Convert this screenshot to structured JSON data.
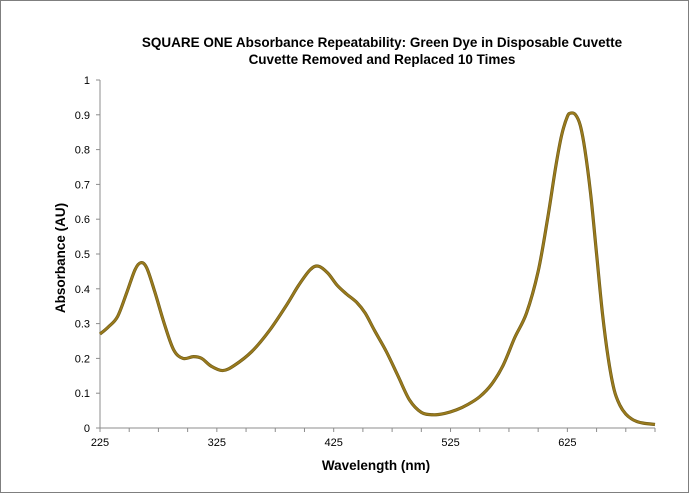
{
  "chart_data": {
    "type": "line",
    "title": "SQUARE ONE Absorbance Repeatability: Green Dye in Disposable Cuvette",
    "subtitle": "Cuvette Removed and Replaced 10 Times",
    "xlabel": "Wavelength (nm)",
    "ylabel": "Absorbance (AU)",
    "xlim": [
      225,
      700
    ],
    "ylim": [
      0,
      1
    ],
    "x_ticks": [
      225,
      325,
      425,
      525,
      625
    ],
    "y_ticks": [
      0,
      0.1,
      0.2,
      0.3,
      0.4,
      0.5,
      0.6,
      0.7,
      0.8,
      0.9,
      1
    ],
    "y_tick_labels": [
      "0",
      "0.1",
      "0.2",
      "0.3",
      "0.4",
      "0.5",
      "0.6",
      "0.7",
      "0.8",
      "0.9",
      "1"
    ],
    "grid": false,
    "legend": "none",
    "line_color": "#9a7a1c",
    "series": [
      {
        "x": [
          225,
          232,
          240,
          248,
          255,
          260,
          265,
          272,
          280,
          288,
          296,
          305,
          312,
          320,
          330,
          340,
          355,
          370,
          385,
          395,
          405,
          412,
          420,
          428,
          436,
          445,
          452,
          460,
          470,
          480,
          490,
          500,
          510,
          520,
          530,
          540,
          550,
          560,
          570,
          580,
          590,
          600,
          608,
          615,
          620,
          625,
          628,
          632,
          636,
          640,
          645,
          650,
          655,
          660,
          665,
          670,
          675,
          680,
          685,
          690,
          700
        ],
        "y": [
          0.27,
          0.29,
          0.32,
          0.39,
          0.455,
          0.475,
          0.46,
          0.39,
          0.3,
          0.225,
          0.2,
          0.205,
          0.2,
          0.178,
          0.165,
          0.18,
          0.22,
          0.28,
          0.355,
          0.41,
          0.455,
          0.465,
          0.445,
          0.41,
          0.385,
          0.36,
          0.33,
          0.28,
          0.22,
          0.15,
          0.08,
          0.045,
          0.038,
          0.042,
          0.052,
          0.068,
          0.09,
          0.125,
          0.18,
          0.26,
          0.33,
          0.45,
          0.6,
          0.75,
          0.84,
          0.895,
          0.905,
          0.9,
          0.87,
          0.8,
          0.67,
          0.5,
          0.33,
          0.2,
          0.11,
          0.065,
          0.04,
          0.026,
          0.018,
          0.014,
          0.01
        ]
      }
    ]
  }
}
